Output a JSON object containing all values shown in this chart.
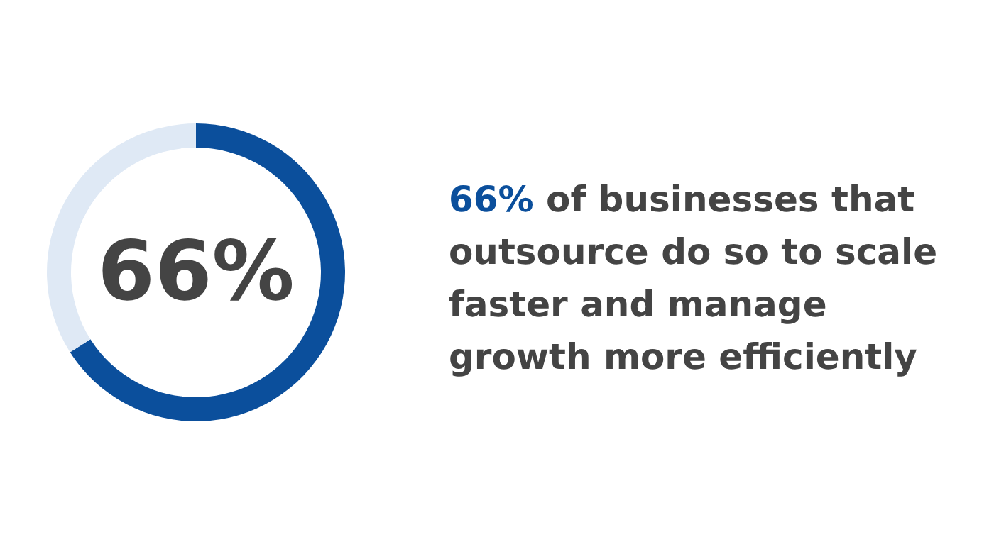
{
  "chart_data": {
    "type": "donut",
    "title": "66% of businesses that outsource do so to scale faster and manage growth more efficiently",
    "categories": [
      null,
      null
    ],
    "values": [
      66,
      34
    ],
    "colors": [
      "#0b4f9c",
      "#dfe9f5"
    ],
    "value_labels": [
      "66%",
      null
    ]
  }
}
